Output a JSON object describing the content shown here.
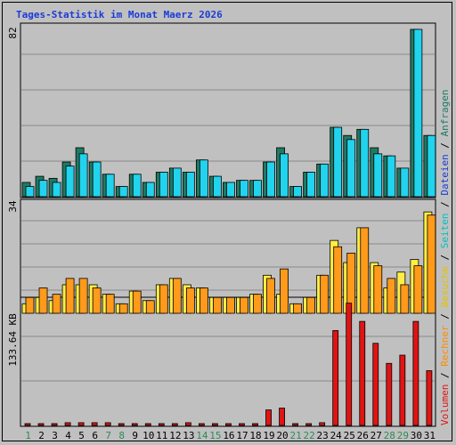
{
  "title": "Tages-Statistik im Monat Maerz 2026",
  "colors": {
    "anfragen": "#1f7a63",
    "dateien": "#22d3ee",
    "besuche": "#ffee44",
    "rechner": "#ff9a1a",
    "volumen": "#e01414",
    "seiten_label": "#00c0c0",
    "weekend_day": "#2e8b57",
    "weekday": "#000000"
  },
  "labels": {
    "anfragen": "Anfragen",
    "dateien": "Dateien",
    "seiten": "Seiten",
    "besuche": "Besuche",
    "rechner": "Rechner",
    "volumen": "Volumen",
    "slash": "/"
  },
  "chart_data": [
    {
      "type": "bar",
      "panel": "anfragen-dateien",
      "max_label": "82",
      "ylim": [
        0,
        82
      ],
      "categories": [
        "1",
        "2",
        "3",
        "4",
        "5",
        "6",
        "7",
        "8",
        "9",
        "10",
        "11",
        "12",
        "13",
        "14",
        "15",
        "16",
        "17",
        "18",
        "19",
        "20",
        "21",
        "22",
        "23",
        "24",
        "25",
        "26",
        "27",
        "28",
        "29",
        "30",
        "31"
      ],
      "weekend": [
        1,
        7,
        8,
        14,
        15,
        21,
        22,
        28,
        29
      ],
      "series": [
        {
          "name": "Anfragen",
          "values": [
            7,
            10,
            9,
            17,
            24,
            17,
            11,
            5,
            11,
            7,
            12,
            14,
            12,
            18,
            10,
            7,
            8,
            8,
            17,
            24,
            5,
            12,
            16,
            34,
            30,
            33,
            24,
            20,
            14,
            82,
            30
          ]
        },
        {
          "name": "Dateien",
          "values": [
            5,
            8,
            7,
            15,
            21,
            17,
            11,
            5,
            11,
            7,
            12,
            14,
            12,
            18,
            10,
            7,
            8,
            8,
            17,
            21,
            5,
            12,
            16,
            34,
            28,
            33,
            21,
            20,
            14,
            82,
            30
          ]
        }
      ]
    },
    {
      "type": "bar",
      "panel": "besuche-rechner",
      "max_label": "34",
      "ylim": [
        0,
        34
      ],
      "categories": [
        "1",
        "2",
        "3",
        "4",
        "5",
        "6",
        "7",
        "8",
        "9",
        "10",
        "11",
        "12",
        "13",
        "14",
        "15",
        "16",
        "17",
        "18",
        "19",
        "20",
        "21",
        "22",
        "23",
        "24",
        "25",
        "26",
        "27",
        "28",
        "29",
        "30",
        "31"
      ],
      "series": [
        {
          "name": "Besuche",
          "values": [
            3,
            5,
            4,
            9,
            9,
            9,
            6,
            3,
            7,
            4,
            9,
            11,
            9,
            8,
            5,
            5,
            5,
            6,
            12,
            6,
            3,
            5,
            12,
            23,
            16,
            27,
            16,
            8,
            13,
            17,
            32
          ]
        },
        {
          "name": "Rechner",
          "values": [
            5,
            8,
            6,
            11,
            11,
            8,
            6,
            3,
            7,
            4,
            9,
            11,
            8,
            8,
            5,
            5,
            5,
            6,
            11,
            14,
            3,
            5,
            12,
            21,
            19,
            27,
            15,
            11,
            9,
            15,
            31
          ]
        }
      ]
    },
    {
      "type": "bar",
      "panel": "volumen",
      "max_label": "133.64 KB",
      "ylim": [
        0,
        133.64
      ],
      "unit": "KB",
      "categories": [
        "1",
        "2",
        "3",
        "4",
        "5",
        "6",
        "7",
        "8",
        "9",
        "10",
        "11",
        "12",
        "13",
        "14",
        "15",
        "16",
        "17",
        "18",
        "19",
        "20",
        "21",
        "22",
        "23",
        "24",
        "25",
        "26",
        "27",
        "28",
        "29",
        "30",
        "31"
      ],
      "series": [
        {
          "name": "Volumen",
          "values": [
            2,
            2,
            2,
            3,
            3,
            3,
            3,
            2,
            2,
            2,
            2,
            2,
            3,
            2,
            2,
            2,
            2,
            2,
            17,
            19,
            2,
            2,
            3,
            104,
            134,
            114,
            90,
            68,
            77,
            114,
            60
          ]
        }
      ]
    }
  ]
}
